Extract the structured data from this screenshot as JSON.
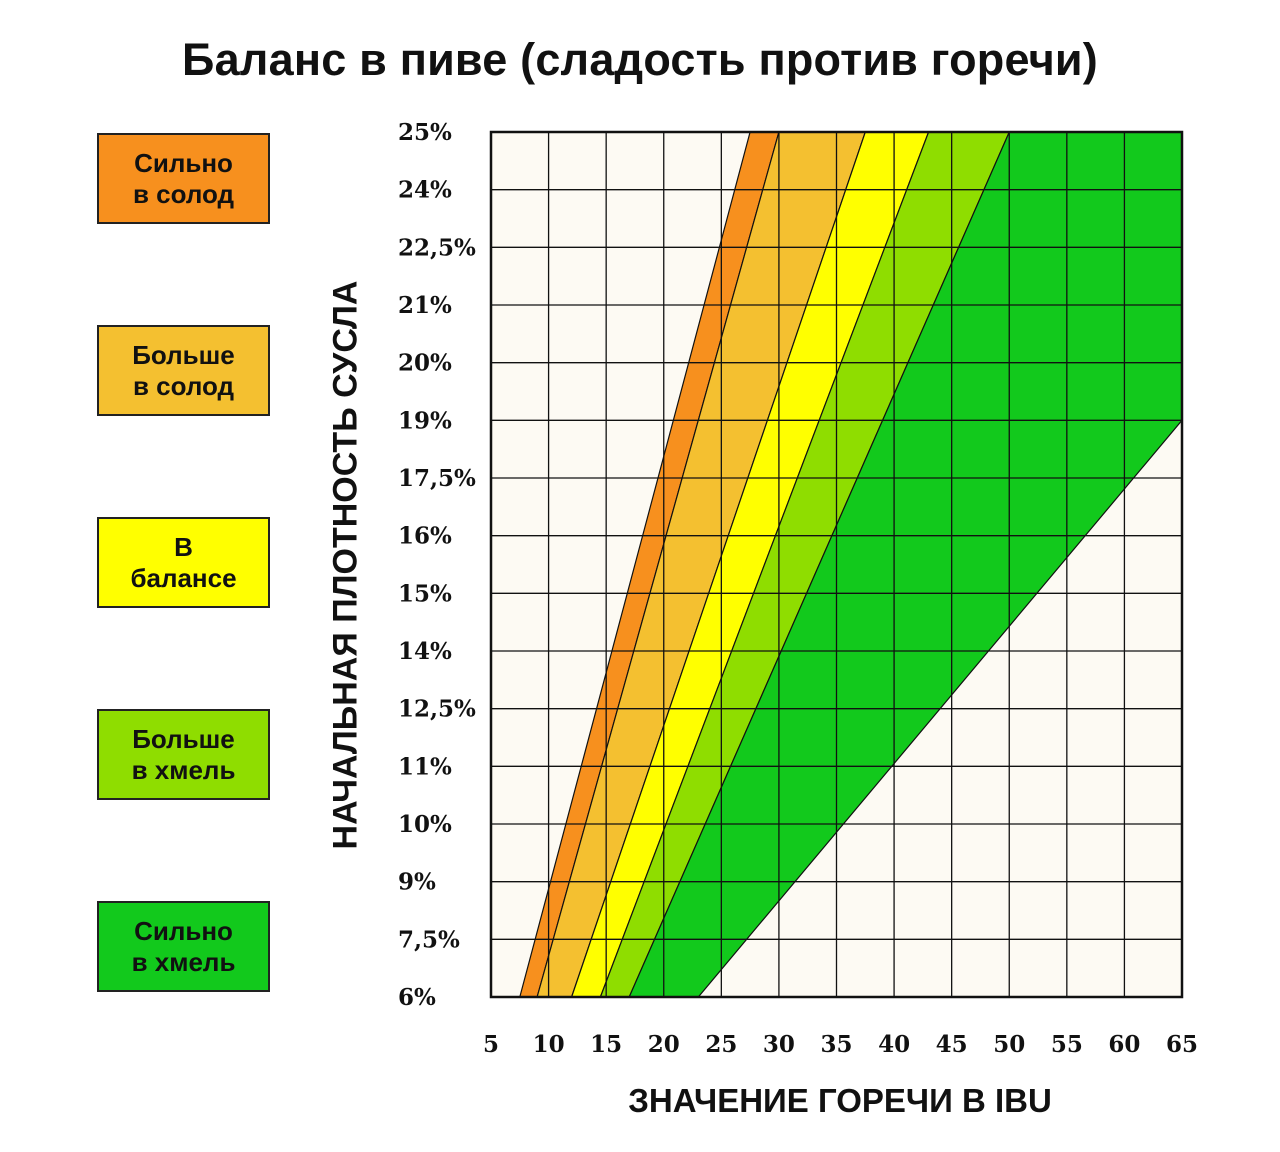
{
  "title": "Баланс в пиве (сладость против горечи)",
  "legend": [
    {
      "line1": "Сильно",
      "line2": "в солод",
      "color": "#f7901e"
    },
    {
      "line1": "Больше",
      "line2": "в солод",
      "color": "#f4c030"
    },
    {
      "line1": "В",
      "line2": "балансе",
      "color": "#ffff00"
    },
    {
      "line1": "Больше",
      "line2": "в хмель",
      "color": "#8fdd00"
    },
    {
      "line1": "Сильно",
      "line2": "в хмель",
      "color": "#12c91c"
    }
  ],
  "chart_data": {
    "type": "area",
    "title": "Баланс в пиве (сладость против горечи)",
    "xlabel": "ЗНАЧЕНИЕ ГОРЕЧИ В IBU",
    "ylabel": "НАЧАЛЬНАЯ ПЛОТНОСТЬ СУСЛА",
    "x_ticks": [
      "5",
      "10",
      "15",
      "20",
      "25",
      "30",
      "35",
      "40",
      "45",
      "50",
      "55",
      "60",
      "65"
    ],
    "y_ticks": [
      "6%",
      "7,5%",
      "9%",
      "10%",
      "11%",
      "12,5%",
      "14%",
      "15%",
      "16%",
      "17,5%",
      "19%",
      "20%",
      "21%",
      "22,5%",
      "24%",
      "25%"
    ],
    "grid": true,
    "background_color": "#fdfaf3",
    "bands": [
      {
        "name": "Сильно в солод",
        "color": "#f7901e",
        "left_edge": [
          [
            7.5,
            "6%"
          ],
          [
            27.5,
            "25%"
          ]
        ],
        "right_edge": [
          [
            9,
            "6%"
          ],
          [
            30,
            "25%"
          ]
        ]
      },
      {
        "name": "Больше в солод",
        "color": "#f4c030",
        "left_edge": [
          [
            9,
            "6%"
          ],
          [
            30,
            "25%"
          ]
        ],
        "right_edge": [
          [
            12,
            "6%"
          ],
          [
            37.5,
            "25%"
          ]
        ]
      },
      {
        "name": "В балансе",
        "color": "#ffff00",
        "left_edge": [
          [
            12,
            "6%"
          ],
          [
            37.5,
            "25%"
          ]
        ],
        "right_edge": [
          [
            14.5,
            "6%"
          ],
          [
            43,
            "25%"
          ]
        ]
      },
      {
        "name": "Больше в хмель",
        "color": "#8fdd00",
        "left_edge": [
          [
            14.5,
            "6%"
          ],
          [
            43,
            "25%"
          ]
        ],
        "right_edge": [
          [
            17,
            "6%"
          ],
          [
            50,
            "25%"
          ]
        ]
      },
      {
        "name": "Сильно в хмель",
        "color": "#12c91c",
        "left_edge": [
          [
            17,
            "6%"
          ],
          [
            50,
            "25%"
          ]
        ],
        "right_edge": [
          [
            23,
            "6%"
          ],
          [
            65,
            "19%"
          ]
        ]
      }
    ]
  }
}
